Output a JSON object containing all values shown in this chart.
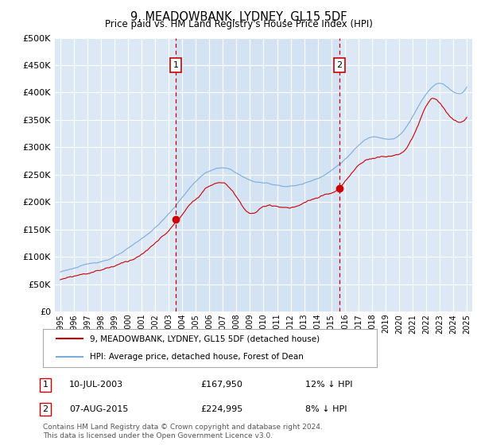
{
  "title": "9, MEADOWBANK, LYDNEY, GL15 5DF",
  "subtitle": "Price paid vs. HM Land Registry's House Price Index (HPI)",
  "ylim": [
    0,
    500000
  ],
  "yticks": [
    0,
    50000,
    100000,
    150000,
    200000,
    250000,
    300000,
    350000,
    400000,
    450000,
    500000
  ],
  "xlim_start": 1994.6,
  "xlim_end": 2025.4,
  "plot_bg": "#dce8f5",
  "fig_bg": "#ffffff",
  "grid_color": "#ffffff",
  "marker1_x": 2003.52,
  "marker1_y": 167950,
  "marker1_label": "1",
  "marker1_date": "10-JUL-2003",
  "marker1_price": "£167,950",
  "marker1_hpi": "12% ↓ HPI",
  "marker2_x": 2015.6,
  "marker2_y": 224995,
  "marker2_label": "2",
  "marker2_date": "07-AUG-2015",
  "marker2_price": "£224,995",
  "marker2_hpi": "8% ↓ HPI",
  "legend_line1": "9, MEADOWBANK, LYDNEY, GL15 5DF (detached house)",
  "legend_line2": "HPI: Average price, detached house, Forest of Dean",
  "footnote1": "Contains HM Land Registry data © Crown copyright and database right 2024.",
  "footnote2": "This data is licensed under the Open Government Licence v3.0.",
  "line_color_red": "#cc0000",
  "line_color_blue": "#7aaddd",
  "highlight_alpha": 0.15
}
